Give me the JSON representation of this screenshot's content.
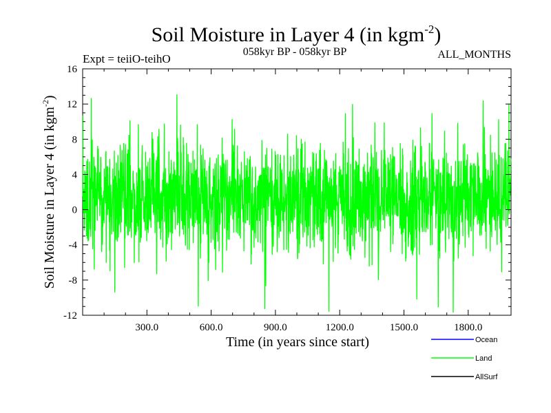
{
  "header": {
    "title_main": "Soil Moisture in Layer 4 (in kgm",
    "title_sup": "-2",
    "title_close": ")",
    "expt_label": "Expt = teiiO-teihO",
    "period_label": "058kyr BP - 058kyr BP",
    "months_label": "ALL_MONTHS"
  },
  "axes": {
    "xlabel": "Time (in years since start)",
    "ylabel_main": "Soil Moisture in Layer 4 (in kgm",
    "ylabel_sup": "-2",
    "ylabel_close": ")"
  },
  "legend": [
    {
      "label": "Ocean",
      "color": "#0000ff"
    },
    {
      "label": "Land",
      "color": "#00ff00"
    },
    {
      "label": "AllSurf",
      "color": "#000000"
    }
  ],
  "chart_data": {
    "type": "line",
    "x_range": [
      0,
      2000
    ],
    "ylim": [
      -12,
      16
    ],
    "y_ticks": [
      "16",
      "12",
      "8",
      "4",
      "0",
      "-4",
      "-8",
      "-12"
    ],
    "y_tick_values": [
      16,
      12,
      8,
      4,
      0,
      -4,
      -8,
      -12
    ],
    "x_ticks": [
      "300.0",
      "600.0",
      "900.0",
      "1200.0",
      "1500.0",
      "1800.0"
    ],
    "x_tick_values": [
      300,
      600,
      900,
      1200,
      1500,
      1800
    ],
    "grid": false,
    "series": [
      {
        "name": "Land",
        "color": "#00ff00",
        "mean": 1.2,
        "sample_x": [
          0,
          40,
          85,
          150,
          260,
          440,
          540,
          850,
          1150,
          1260,
          1560,
          1660,
          1730,
          1870,
          1990
        ],
        "sample_y": [
          1.5,
          12.7,
          6.0,
          -9.4,
          9.7,
          13.1,
          -11.0,
          -11.3,
          -11.6,
          12.0,
          -10.2,
          -11.1,
          -11.7,
          12.4,
          12.0
        ]
      }
    ]
  }
}
